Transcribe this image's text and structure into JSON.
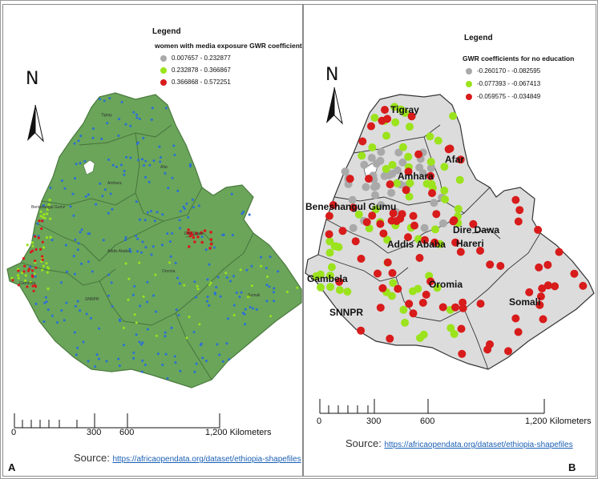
{
  "panel_a": {
    "letter": "A",
    "legend": {
      "title": "Legend",
      "subtitle": "women with media exposure GWR coefficients",
      "classes": [
        {
          "label": "0.007657 - 0.232877",
          "color": "#a9a9a9"
        },
        {
          "label": "0.232878 - 0.366867",
          "color": "#9be31c"
        },
        {
          "label": "0.366868 - 0.572251",
          "color": "#d81b1b"
        }
      ]
    },
    "north": "N",
    "scale": {
      "ticks": [
        "0",
        "300",
        "600",
        "1,200 Kilometers"
      ]
    },
    "source_label": "Source:",
    "source_url": "https://africaopendata.org/dataset/ethiopia-shapefiles",
    "regions": [
      "Tigray",
      "Afar",
      "Amhara",
      "Benishangul Gumz",
      "Addis Ababa",
      "Dire Dawa",
      "Gambela",
      "Oromia",
      "SNNPR",
      "Somali"
    ],
    "map_color": "#6aa55a",
    "point_color": "#2a6fd6"
  },
  "panel_b": {
    "letter": "B",
    "legend": {
      "title": "Legend",
      "subtitle": "GWR coefficients for no education",
      "classes": [
        {
          "label": "-0.260170 - -0.082595",
          "color": "#a9a9a9"
        },
        {
          "label": "-0.077393 - -0.067413",
          "color": "#9be31c"
        },
        {
          "label": "-0.059575 - -0.034849",
          "color": "#d81b1b"
        }
      ]
    },
    "north": "N",
    "scale": {
      "ticks": [
        "0",
        "300",
        "600",
        "1,200 Kilometers"
      ]
    },
    "source_label": "Source:",
    "source_url": "https://africaopendata.org/dataset/ethiopia-shapefiles",
    "regions": [
      "Tigray",
      "Afar",
      "Amhara",
      "Beneshangul Gumu",
      "Addis Ababa",
      "Dire Dawa",
      "Hareri",
      "Gambela",
      "Oromia",
      "SNNPR",
      "Somali"
    ],
    "map_color": "#dcdcdc"
  }
}
